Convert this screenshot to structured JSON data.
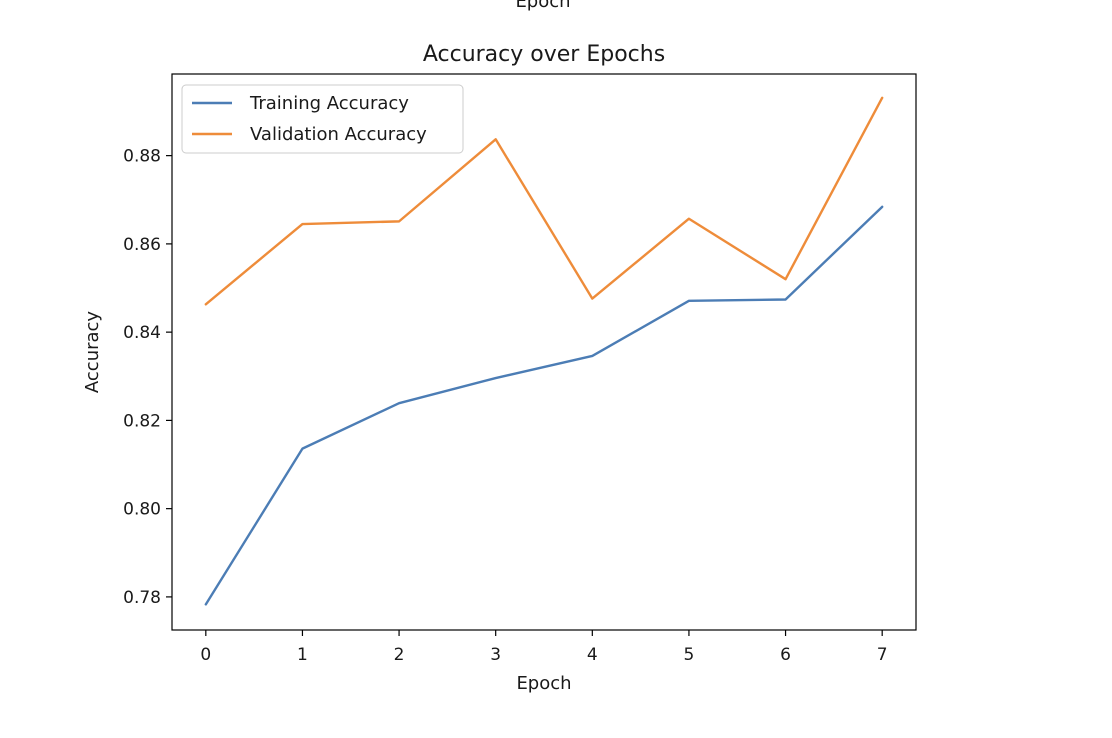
{
  "top_cut_label": "Epoch",
  "chart_data": {
    "type": "line",
    "title": "Accuracy over Epochs",
    "xlabel": "Epoch",
    "ylabel": "Accuracy",
    "x": [
      0,
      1,
      2,
      3,
      4,
      5,
      6,
      7
    ],
    "xlim": [
      -0.35,
      7.35
    ],
    "ylim": [
      0.7725,
      0.8985
    ],
    "x_ticks": [
      0,
      1,
      2,
      3,
      4,
      5,
      6,
      7
    ],
    "y_ticks": [
      0.78,
      0.8,
      0.82,
      0.84,
      0.86,
      0.88
    ],
    "x_tick_labels": [
      "0",
      "1",
      "2",
      "3",
      "4",
      "5",
      "6",
      "7"
    ],
    "y_tick_labels": [
      "0.78",
      "0.80",
      "0.82",
      "0.84",
      "0.86",
      "0.88"
    ],
    "grid": false,
    "legend_position": "upper-left",
    "series": [
      {
        "name": "Training Accuracy",
        "color": "#4c7db5",
        "values": [
          0.7783,
          0.8136,
          0.8239,
          0.8296,
          0.8346,
          0.8471,
          0.8474,
          0.8684
        ]
      },
      {
        "name": "Validation Accuracy",
        "color": "#ee8c3a",
        "values": [
          0.8463,
          0.8645,
          0.8651,
          0.8837,
          0.8476,
          0.8657,
          0.852,
          0.8931
        ]
      }
    ]
  }
}
